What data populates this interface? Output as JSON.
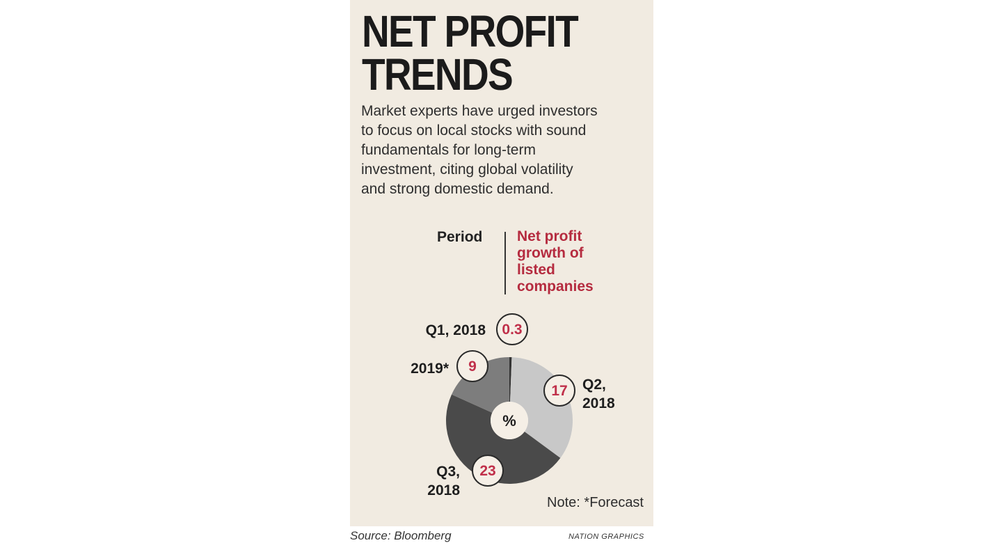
{
  "title": "NET PROFIT\nTRENDS",
  "description": "Market experts have urged investors\nto focus on local stocks with sound\nfundamentals for long-term\ninvestment, citing global volatility\nand strong domestic demand.",
  "legend": {
    "left": "Period",
    "right": "Net profit\ngrowth of\nlisted\ncompanies"
  },
  "chart_data": {
    "type": "pie",
    "center_label": "%",
    "slices": [
      {
        "period": "Q1, 2018",
        "value": 0.3,
        "value_label": "0.3",
        "color": "#333333"
      },
      {
        "period": "Q2, 2018",
        "value": 17,
        "value_label": "17",
        "color": "#c8c8c8"
      },
      {
        "period": "Q3, 2018",
        "value": 23,
        "value_label": "23",
        "color": "#4a4a4a"
      },
      {
        "period": "2019*",
        "value": 9,
        "value_label": "9",
        "color": "#7d7d7d"
      }
    ]
  },
  "colors": {
    "background": "#f1ebe1",
    "accent": "#b52b3f",
    "value_text": "#c0304a"
  },
  "note": "Note: *Forecast",
  "source": "Source: Bloomberg",
  "credit": "NATION GRAPHICS"
}
